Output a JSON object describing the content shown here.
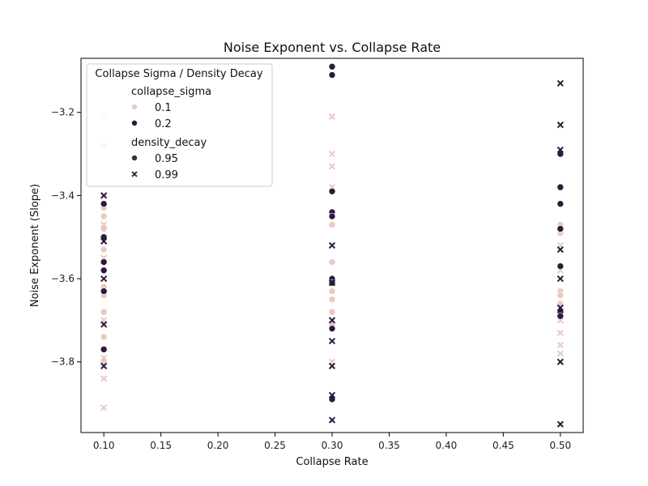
{
  "chart_data": {
    "type": "scatter",
    "title": "Noise Exponent vs. Collapse Rate",
    "xlabel": "Collapse Rate",
    "ylabel": "Noise Exponent (Slope)",
    "xlim": [
      0.08,
      0.52
    ],
    "ylim": [
      -3.97,
      -3.07
    ],
    "xticks": [
      "0.10",
      "0.15",
      "0.20",
      "0.25",
      "0.30",
      "0.35",
      "0.40",
      "0.45",
      "0.50"
    ],
    "yticks": [
      "-3.2",
      "-3.4",
      "-3.6",
      "-3.8"
    ],
    "grid": false,
    "legend": {
      "placement": "upper-left",
      "title": "Collapse Sigma / Density Decay",
      "hue_title": "collapse_sigma",
      "style_title": "density_decay",
      "hue_entries": [
        {
          "label": "0.1",
          "color": "#ebc9c3"
        },
        {
          "label": "0.2",
          "color": "#2b1a3f"
        }
      ],
      "style_entries": [
        {
          "label": "0.95",
          "marker": "circle"
        },
        {
          "label": "0.99",
          "marker": "x"
        }
      ]
    },
    "series": [
      {
        "collapse_sigma": "0.1",
        "density_decay": "0.95",
        "marker": "circle",
        "color": "#ebc9c3",
        "points": [
          [
            0.1,
            -3.28
          ],
          [
            0.1,
            -3.43
          ],
          [
            0.1,
            -3.45
          ],
          [
            0.1,
            -3.48
          ],
          [
            0.1,
            -3.53
          ],
          [
            0.1,
            -3.62
          ],
          [
            0.1,
            -3.64
          ],
          [
            0.1,
            -3.68
          ],
          [
            0.1,
            -3.74
          ],
          [
            0.1,
            -3.8
          ],
          [
            0.3,
            -3.47
          ],
          [
            0.3,
            -3.56
          ],
          [
            0.3,
            -3.63
          ],
          [
            0.3,
            -3.65
          ],
          [
            0.3,
            -3.68
          ],
          [
            0.3,
            -3.71
          ],
          [
            0.5,
            -3.47
          ],
          [
            0.5,
            -3.49
          ],
          [
            0.5,
            -3.63
          ],
          [
            0.5,
            -3.64
          ],
          [
            0.5,
            -3.66
          ],
          [
            0.5,
            -3.69
          ]
        ]
      },
      {
        "collapse_sigma": "0.1",
        "density_decay": "0.99",
        "marker": "x",
        "color": "#ebc9c3",
        "points": [
          [
            0.1,
            -3.21
          ],
          [
            0.1,
            -3.4
          ],
          [
            0.1,
            -3.47
          ],
          [
            0.1,
            -3.55
          ],
          [
            0.1,
            -3.7
          ],
          [
            0.1,
            -3.79
          ],
          [
            0.1,
            -3.84
          ],
          [
            0.1,
            -3.91
          ],
          [
            0.3,
            -3.21
          ],
          [
            0.3,
            -3.3
          ],
          [
            0.3,
            -3.33
          ],
          [
            0.3,
            -3.38
          ],
          [
            0.3,
            -3.61
          ],
          [
            0.3,
            -3.8
          ],
          [
            0.5,
            -3.52
          ],
          [
            0.5,
            -3.58
          ],
          [
            0.5,
            -3.67
          ],
          [
            0.5,
            -3.7
          ],
          [
            0.5,
            -3.73
          ],
          [
            0.5,
            -3.76
          ],
          [
            0.5,
            -3.78
          ]
        ]
      },
      {
        "collapse_sigma": "0.2",
        "density_decay": "0.95",
        "marker": "circle",
        "color": "#2b1a3f",
        "points": [
          [
            0.1,
            -3.42
          ],
          [
            0.1,
            -3.5
          ],
          [
            0.1,
            -3.56
          ],
          [
            0.1,
            -3.58
          ],
          [
            0.1,
            -3.63
          ],
          [
            0.1,
            -3.77
          ],
          [
            0.3,
            -3.09
          ],
          [
            0.3,
            -3.11
          ],
          [
            0.3,
            -3.39
          ],
          [
            0.3,
            -3.44
          ],
          [
            0.3,
            -3.45
          ],
          [
            0.3,
            -3.6
          ],
          [
            0.3,
            -3.61
          ],
          [
            0.3,
            -3.72
          ],
          [
            0.3,
            -3.89
          ],
          [
            0.5,
            -3.3
          ],
          [
            0.5,
            -3.38
          ],
          [
            0.5,
            -3.42
          ],
          [
            0.5,
            -3.48
          ],
          [
            0.5,
            -3.57
          ],
          [
            0.5,
            -3.68
          ],
          [
            0.5,
            -3.69
          ]
        ]
      },
      {
        "collapse_sigma": "0.2",
        "density_decay": "0.99",
        "marker": "x",
        "color": "#2b1a3f",
        "points": [
          [
            0.1,
            -3.4
          ],
          [
            0.1,
            -3.51
          ],
          [
            0.1,
            -3.6
          ],
          [
            0.1,
            -3.71
          ],
          [
            0.1,
            -3.81
          ],
          [
            0.3,
            -3.52
          ],
          [
            0.3,
            -3.61
          ],
          [
            0.3,
            -3.7
          ],
          [
            0.3,
            -3.75
          ],
          [
            0.3,
            -3.81
          ],
          [
            0.3,
            -3.88
          ],
          [
            0.3,
            -3.94
          ],
          [
            0.5,
            -3.13
          ],
          [
            0.5,
            -3.23
          ],
          [
            0.5,
            -3.29
          ],
          [
            0.5,
            -3.53
          ],
          [
            0.5,
            -3.6
          ],
          [
            0.5,
            -3.67
          ],
          [
            0.5,
            -3.8
          ],
          [
            0.5,
            -3.95
          ]
        ]
      }
    ]
  }
}
